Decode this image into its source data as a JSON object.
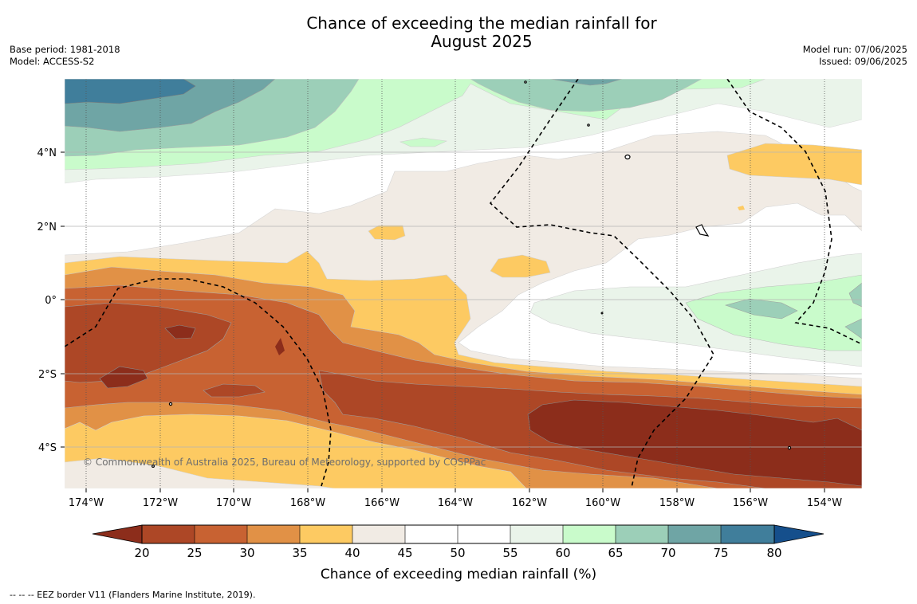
{
  "title": {
    "line1": "Chance of exceeding the median rainfall for",
    "line2": "August 2025"
  },
  "meta_left": {
    "base_period": "Base period: 1981-2018",
    "model": "Model: ACCESS-S2"
  },
  "meta_right": {
    "model_run": "Model run: 07/06/2025",
    "issued": "Issued: 09/06/2025"
  },
  "map": {
    "lon_labels": [
      "174°W",
      "172°W",
      "170°W",
      "168°W",
      "166°W",
      "164°W",
      "162°W",
      "160°W",
      "158°W",
      "156°W",
      "154°W"
    ],
    "lat_labels": [
      "4°N",
      "2°N",
      "0°",
      "2°S",
      "4°S"
    ],
    "copyright": "© Commonwealth of Australia 2025, Bureau of Meteorology, supported by COSPPac"
  },
  "colorbar": {
    "ticks": [
      "20",
      "25",
      "30",
      "35",
      "40",
      "45",
      "50",
      "55",
      "60",
      "65",
      "70",
      "75",
      "80"
    ],
    "label": "Chance of exceeding median rainfall (%)",
    "colors": {
      "under": "#8c2d1b",
      "b20_25": "#ad4726",
      "b25_30": "#c86232",
      "b30_35": "#e19146",
      "b35_40": "#fdca62",
      "b40_45": "#f1ebe4",
      "b45_50": "#ffffff",
      "b50_55": "#ffffff",
      "b55_60": "#eaf4ea",
      "b60_65": "#c9fbcb",
      "b65_70": "#9ccfb8",
      "b70_75": "#6fa5a5",
      "b75_80": "#407e9b",
      "over": "#154f8c"
    }
  },
  "footer": {
    "eez": "--  --  -- EEZ border V11 (Flanders Marine Institute, 2019)."
  }
}
